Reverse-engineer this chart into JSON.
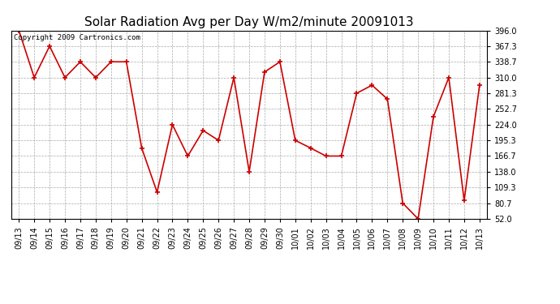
{
  "title": "Solar Radiation Avg per Day W/m2/minute 20091013",
  "copyright_text": "Copyright 2009 Cartronics.com",
  "line_color": "#cc0000",
  "marker": "+",
  "marker_size": 4,
  "bg_color": "#ffffff",
  "grid_color": "#aaaaaa",
  "labels": [
    "09/13",
    "09/14",
    "09/15",
    "09/16",
    "09/17",
    "09/18",
    "09/19",
    "09/20",
    "09/21",
    "09/22",
    "09/23",
    "09/24",
    "09/25",
    "09/26",
    "09/27",
    "09/28",
    "09/29",
    "09/30",
    "10/01",
    "10/02",
    "10/03",
    "10/04",
    "10/05",
    "10/06",
    "10/07",
    "10/08",
    "10/09",
    "10/10",
    "10/11",
    "10/12",
    "10/13"
  ],
  "values": [
    396.0,
    310.0,
    367.3,
    310.0,
    338.7,
    310.0,
    338.7,
    338.7,
    181.3,
    100.7,
    224.0,
    166.7,
    213.3,
    195.3,
    310.0,
    138.0,
    320.0,
    338.7,
    195.3,
    181.3,
    166.7,
    166.7,
    281.3,
    296.0,
    270.7,
    80.7,
    52.0,
    238.7,
    310.0,
    85.3,
    296.0
  ],
  "yticks": [
    52.0,
    80.7,
    109.3,
    138.0,
    166.7,
    195.3,
    224.0,
    252.7,
    281.3,
    310.0,
    338.7,
    367.3,
    396.0
  ],
  "ylim": [
    52.0,
    396.0
  ],
  "title_fontsize": 11,
  "tick_fontsize": 7,
  "copyright_fontsize": 6.5
}
